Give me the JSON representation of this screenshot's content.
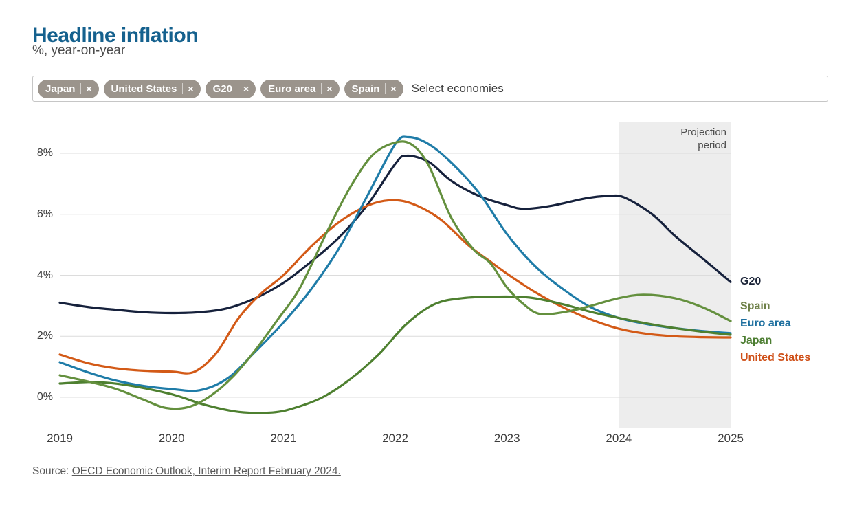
{
  "header": {
    "title": "Headline inflation",
    "subtitle": "%, year-on-year"
  },
  "selector": {
    "chips": [
      {
        "label": "Japan"
      },
      {
        "label": "United States"
      },
      {
        "label": "G20"
      },
      {
        "label": "Euro area"
      },
      {
        "label": "Spain"
      }
    ],
    "remove_icon": "×",
    "placeholder": "Select economies"
  },
  "chart_data": {
    "type": "line",
    "title": "Headline inflation",
    "subtitle": "%, year-on-year",
    "unit": "%",
    "xlim": [
      2019,
      2025
    ],
    "ylim": [
      -1,
      9
    ],
    "grid": "horizontal",
    "gridline_color": "#dcdcdc",
    "x_ticks": [
      "2019",
      "2020",
      "2021",
      "2022",
      "2023",
      "2024",
      "2025"
    ],
    "x_tick_values": [
      2019,
      2020,
      2021,
      2022,
      2023,
      2024,
      2025
    ],
    "y_ticks": [
      {
        "value": 0,
        "label": "0%"
      },
      {
        "value": 2,
        "label": "2%"
      },
      {
        "value": 4,
        "label": "4%"
      },
      {
        "value": 6,
        "label": "6%"
      },
      {
        "value": 8,
        "label": "8%"
      }
    ],
    "projection": {
      "label": "Projection period",
      "label_lines": [
        "Projection",
        "period"
      ],
      "start": 2024,
      "end": 2025,
      "fill": "#ededed"
    },
    "series": [
      {
        "name": "G20",
        "color": "#16213c",
        "points": [
          [
            2019,
            3.1
          ],
          [
            2019.25,
            2.96
          ],
          [
            2019.5,
            2.87
          ],
          [
            2019.75,
            2.79
          ],
          [
            2020,
            2.76
          ],
          [
            2020.25,
            2.79
          ],
          [
            2020.5,
            2.92
          ],
          [
            2020.75,
            3.25
          ],
          [
            2021,
            3.75
          ],
          [
            2021.25,
            4.45
          ],
          [
            2021.5,
            5.25
          ],
          [
            2021.75,
            6.3
          ],
          [
            2022,
            7.65
          ],
          [
            2022.1,
            7.92
          ],
          [
            2022.3,
            7.72
          ],
          [
            2022.5,
            7.1
          ],
          [
            2022.75,
            6.6
          ],
          [
            2023,
            6.3
          ],
          [
            2023.15,
            6.18
          ],
          [
            2023.4,
            6.28
          ],
          [
            2023.7,
            6.52
          ],
          [
            2023.9,
            6.6
          ],
          [
            2024.05,
            6.55
          ],
          [
            2024.3,
            6.0
          ],
          [
            2024.5,
            5.3
          ],
          [
            2024.75,
            4.55
          ],
          [
            2025,
            3.78
          ]
        ]
      },
      {
        "name": "United States",
        "color": "#d35a17",
        "points": [
          [
            2019,
            1.4
          ],
          [
            2019.25,
            1.12
          ],
          [
            2019.5,
            0.95
          ],
          [
            2019.75,
            0.87
          ],
          [
            2020,
            0.84
          ],
          [
            2020.2,
            0.83
          ],
          [
            2020.4,
            1.45
          ],
          [
            2020.6,
            2.6
          ],
          [
            2020.8,
            3.4
          ],
          [
            2021,
            4.0
          ],
          [
            2021.25,
            4.95
          ],
          [
            2021.5,
            5.75
          ],
          [
            2021.75,
            6.28
          ],
          [
            2021.95,
            6.46
          ],
          [
            2022.15,
            6.35
          ],
          [
            2022.4,
            5.85
          ],
          [
            2022.65,
            5.0
          ],
          [
            2022.85,
            4.45
          ],
          [
            2023,
            4.05
          ],
          [
            2023.25,
            3.45
          ],
          [
            2023.5,
            2.95
          ],
          [
            2023.75,
            2.55
          ],
          [
            2024,
            2.25
          ],
          [
            2024.25,
            2.08
          ],
          [
            2024.5,
            2.0
          ],
          [
            2024.75,
            1.97
          ],
          [
            2025,
            1.96
          ]
        ]
      },
      {
        "name": "Euro area",
        "color": "#1f7ca8",
        "points": [
          [
            2019,
            1.15
          ],
          [
            2019.25,
            0.82
          ],
          [
            2019.5,
            0.55
          ],
          [
            2019.75,
            0.37
          ],
          [
            2020,
            0.27
          ],
          [
            2020.25,
            0.23
          ],
          [
            2020.5,
            0.62
          ],
          [
            2020.75,
            1.5
          ],
          [
            2021,
            2.45
          ],
          [
            2021.25,
            3.55
          ],
          [
            2021.5,
            4.9
          ],
          [
            2021.75,
            6.6
          ],
          [
            2022,
            8.3
          ],
          [
            2022.12,
            8.53
          ],
          [
            2022.3,
            8.3
          ],
          [
            2022.5,
            7.7
          ],
          [
            2022.75,
            6.7
          ],
          [
            2023,
            5.35
          ],
          [
            2023.25,
            4.3
          ],
          [
            2023.5,
            3.55
          ],
          [
            2023.75,
            2.95
          ],
          [
            2024,
            2.6
          ],
          [
            2024.25,
            2.4
          ],
          [
            2024.5,
            2.27
          ],
          [
            2024.75,
            2.17
          ],
          [
            2025,
            2.1
          ]
        ]
      },
      {
        "name": "Japan",
        "color": "#4e8030",
        "points": [
          [
            2019,
            0.45
          ],
          [
            2019.3,
            0.5
          ],
          [
            2019.6,
            0.4
          ],
          [
            2020,
            0.1
          ],
          [
            2020.3,
            -0.25
          ],
          [
            2020.6,
            -0.48
          ],
          [
            2020.9,
            -0.5
          ],
          [
            2021.1,
            -0.35
          ],
          [
            2021.35,
            0.0
          ],
          [
            2021.6,
            0.6
          ],
          [
            2021.85,
            1.4
          ],
          [
            2022.1,
            2.4
          ],
          [
            2022.35,
            3.05
          ],
          [
            2022.6,
            3.25
          ],
          [
            2022.9,
            3.3
          ],
          [
            2023.2,
            3.27
          ],
          [
            2023.5,
            3.05
          ],
          [
            2023.75,
            2.8
          ],
          [
            2024,
            2.6
          ],
          [
            2024.25,
            2.42
          ],
          [
            2024.5,
            2.27
          ],
          [
            2024.75,
            2.15
          ],
          [
            2025,
            2.05
          ]
        ]
      },
      {
        "name": "Spain",
        "color": "#64903e",
        "points": [
          [
            2019,
            0.72
          ],
          [
            2019.25,
            0.52
          ],
          [
            2019.5,
            0.28
          ],
          [
            2019.75,
            -0.08
          ],
          [
            2019.95,
            -0.35
          ],
          [
            2020.15,
            -0.32
          ],
          [
            2020.35,
            0.05
          ],
          [
            2020.55,
            0.68
          ],
          [
            2020.75,
            1.55
          ],
          [
            2020.95,
            2.55
          ],
          [
            2021.15,
            3.6
          ],
          [
            2021.4,
            5.5
          ],
          [
            2021.6,
            6.9
          ],
          [
            2021.8,
            7.95
          ],
          [
            2022,
            8.35
          ],
          [
            2022.15,
            8.28
          ],
          [
            2022.3,
            7.6
          ],
          [
            2022.5,
            5.9
          ],
          [
            2022.7,
            4.85
          ],
          [
            2022.85,
            4.4
          ],
          [
            2023,
            3.6
          ],
          [
            2023.15,
            3.05
          ],
          [
            2023.3,
            2.73
          ],
          [
            2023.55,
            2.82
          ],
          [
            2023.75,
            3.0
          ],
          [
            2024,
            3.25
          ],
          [
            2024.22,
            3.36
          ],
          [
            2024.5,
            3.25
          ],
          [
            2024.75,
            2.95
          ],
          [
            2025,
            2.5
          ]
        ]
      }
    ],
    "legend_position": "right"
  },
  "legend": {
    "items": [
      {
        "label": "G20",
        "color": "#1b2438"
      },
      {
        "label": "Spain",
        "color": "#6e8048"
      },
      {
        "label": "Euro area",
        "color": "#1d6f9f"
      },
      {
        "label": "Japan",
        "color": "#4c7d31"
      },
      {
        "label": "United States",
        "color": "#cf4f17"
      }
    ]
  },
  "source": {
    "prefix": "Source: ",
    "link_text": "OECD Economic Outlook, Interim Report February 2024."
  }
}
